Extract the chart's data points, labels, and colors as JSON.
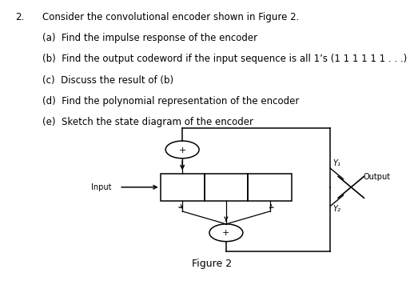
{
  "question_number": "2.",
  "question_text": "Consider the convolutional encoder shown in Figure 2.",
  "sub_questions": [
    "(a)  Find the impulse response of the encoder",
    "(b)  Find the output codeword if the input sequence is all 1’s (1 1 1 1 1 1 . . .)",
    "(c)  Discuss the result of (b)",
    "(d)  Find the polynomial representation of the encoder",
    "(e)  Sketch the state diagram of the encoder"
  ],
  "bg_color": "#c8c0a8",
  "text_color": "#000000",
  "input_label": "Input",
  "output_label": "Output",
  "y1_label": "Y₁",
  "y2_label": "Y₂",
  "fig_label": "Figure 2"
}
